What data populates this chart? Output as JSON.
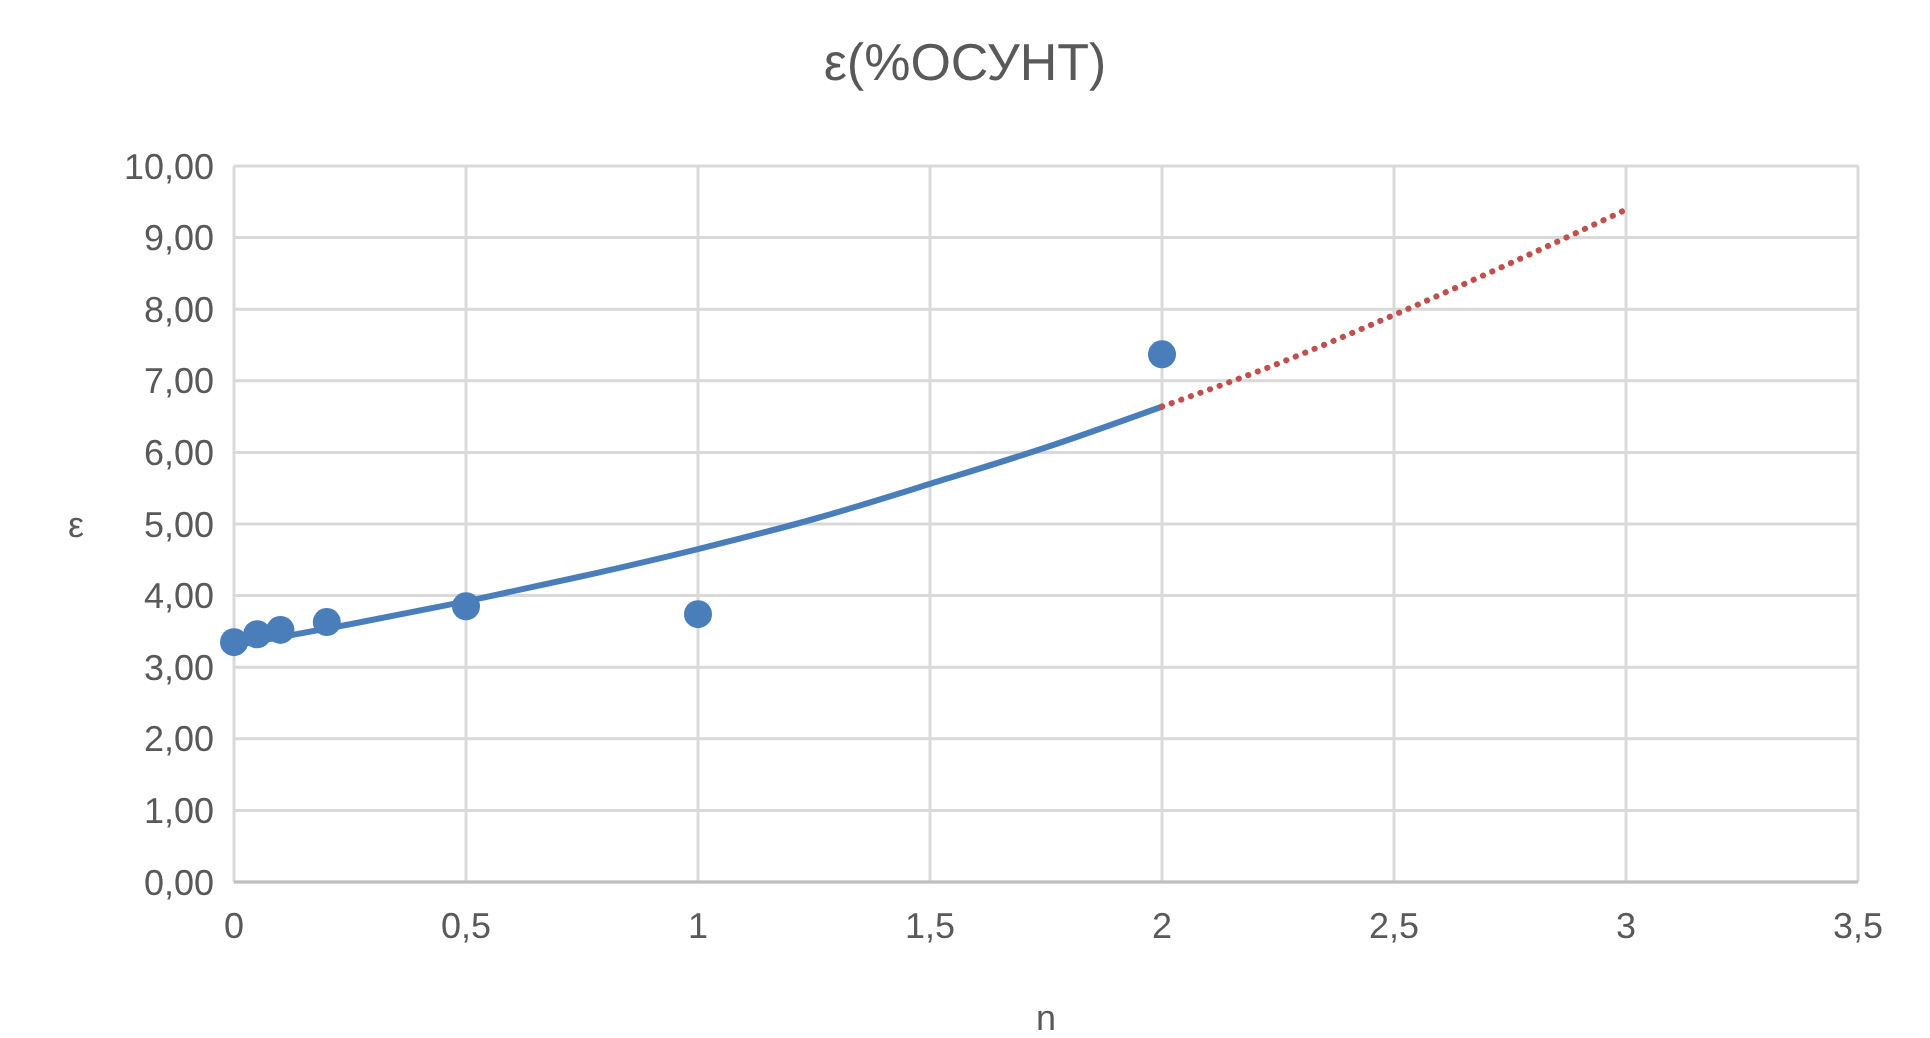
{
  "chart_data": {
    "type": "scatter",
    "title": "ε(%ОСУНТ)",
    "xlabel": "n",
    "ylabel": "ε",
    "xlim": [
      0,
      3.5
    ],
    "xticks": [
      0,
      {
        "value": 0.5,
        "label": "0,5"
      },
      1,
      {
        "value": 1.5,
        "label": "1,5"
      },
      2,
      {
        "value": 2.5,
        "label": "2,5"
      },
      3,
      {
        "value": 3.5,
        "label": "3,5"
      }
    ],
    "ylim": [
      0,
      10
    ],
    "yticks": [
      {
        "value": 0,
        "label": "0,00"
      },
      {
        "value": 1,
        "label": "1,00"
      },
      {
        "value": 2,
        "label": "2,00"
      },
      {
        "value": 3,
        "label": "3,00"
      },
      {
        "value": 4,
        "label": "4,00"
      },
      {
        "value": 5,
        "label": "5,00"
      },
      {
        "value": 6,
        "label": "6,00"
      },
      {
        "value": 7,
        "label": "7,00"
      },
      {
        "value": 8,
        "label": "8,00"
      },
      {
        "value": 9,
        "label": "9,00"
      },
      {
        "value": 10,
        "label": "10,00"
      }
    ],
    "grid": true,
    "series": [
      {
        "type": "line",
        "color": "#4a7ebb",
        "line_style": "solid",
        "marker": "none",
        "x": [
          0,
          0.25,
          0.5,
          0.75,
          1,
          1.25,
          1.5,
          1.75,
          2
        ],
        "values": [
          3.3,
          3.6,
          3.92,
          4.27,
          4.65,
          5.07,
          5.56,
          6.07,
          6.64
        ]
      },
      {
        "type": "line",
        "color": "#c0504d",
        "line_style": "dotted",
        "marker": "none",
        "x": [
          2,
          2.25,
          2.5,
          2.75,
          3
        ],
        "values": [
          6.64,
          7.24,
          7.92,
          8.64,
          9.39
        ]
      },
      {
        "color": "#4a7ebb",
        "marker": "circle",
        "x": [
          0,
          0.05,
          0.1,
          0.2,
          0.5,
          1,
          2
        ],
        "values": [
          3.35,
          3.46,
          3.52,
          3.63,
          3.85,
          3.74,
          7.37
        ]
      }
    ]
  }
}
